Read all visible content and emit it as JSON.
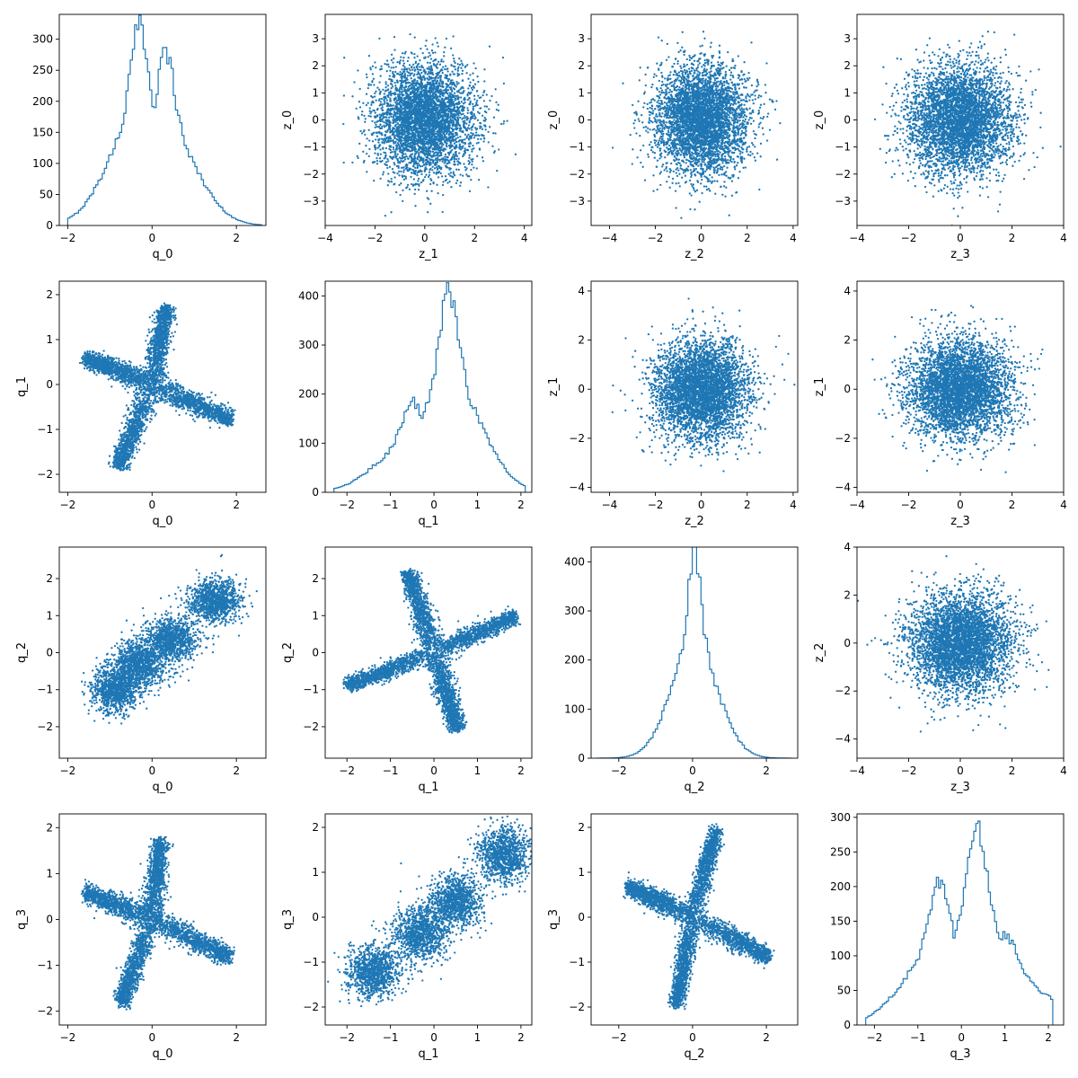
{
  "figure": {
    "background": "#ffffff",
    "series_color": "#1f77b4",
    "rows": 4,
    "cols": 4
  },
  "chart_data": [
    {
      "type": "histogram",
      "row": 0,
      "col": 0,
      "xlabel": "q_0",
      "ylabel": "",
      "xlim": [
        -2.2,
        2.7
      ],
      "ylim": [
        0,
        340
      ],
      "xticks": [
        -2,
        0,
        2
      ],
      "yticks": [
        0,
        50,
        100,
        150,
        200,
        250,
        300
      ],
      "peaks": [
        {
          "x": -0.3,
          "height": 322
        },
        {
          "x": 0.32,
          "height": 280
        }
      ],
      "range": [
        -2.0,
        2.6
      ]
    },
    {
      "type": "scatter",
      "row": 0,
      "col": 1,
      "xlabel": "z_1",
      "ylabel": "z_0",
      "xlim": [
        -4.0,
        4.3
      ],
      "ylim": [
        -3.9,
        3.9
      ],
      "xticks": [
        -4,
        -2,
        0,
        2,
        4
      ],
      "yticks": [
        -3,
        -2,
        -1,
        0,
        1,
        2,
        3
      ],
      "distribution": "standard-normal",
      "center": [
        0,
        0
      ],
      "spread": [
        1,
        1
      ]
    },
    {
      "type": "scatter",
      "row": 0,
      "col": 2,
      "xlabel": "z_2",
      "ylabel": "z_0",
      "xlim": [
        -4.8,
        4.2
      ],
      "ylim": [
        -3.9,
        3.9
      ],
      "xticks": [
        -4,
        -2,
        0,
        2,
        4
      ],
      "yticks": [
        -3,
        -2,
        -1,
        0,
        1,
        2,
        3
      ],
      "distribution": "standard-normal",
      "center": [
        0,
        0
      ],
      "spread": [
        1,
        1
      ]
    },
    {
      "type": "scatter",
      "row": 0,
      "col": 3,
      "xlabel": "z_3",
      "ylabel": "z_0",
      "xlim": [
        -4.0,
        4.0
      ],
      "ylim": [
        -3.9,
        3.9
      ],
      "xticks": [
        -4,
        -2,
        0,
        2,
        4
      ],
      "yticks": [
        -3,
        -2,
        -1,
        0,
        1,
        2,
        3
      ],
      "distribution": "standard-normal",
      "center": [
        0,
        0
      ],
      "spread": [
        1,
        1
      ]
    },
    {
      "type": "scatter",
      "row": 1,
      "col": 0,
      "xlabel": "q_0",
      "ylabel": "q_1",
      "xlim": [
        -2.2,
        2.7
      ],
      "ylim": [
        -2.4,
        2.3
      ],
      "xticks": [
        -2,
        0,
        2
      ],
      "yticks": [
        -2,
        -1,
        0,
        1,
        2
      ],
      "distribution": "four-arm-cross",
      "arms": [
        [
          0.35,
          1.75
        ],
        [
          1.9,
          -0.8
        ],
        [
          -0.8,
          -1.85
        ],
        [
          -1.6,
          0.6
        ]
      ]
    },
    {
      "type": "histogram",
      "row": 1,
      "col": 1,
      "xlabel": "q_1",
      "ylabel": "",
      "xlim": [
        -2.5,
        2.25
      ],
      "ylim": [
        0,
        430
      ],
      "xticks": [
        -2,
        -1,
        0,
        1,
        2
      ],
      "yticks": [
        0,
        100,
        200,
        300,
        400
      ],
      "peaks": [
        {
          "x": -0.5,
          "height": 185
        },
        {
          "x": 0.35,
          "height": 410
        }
      ],
      "range": [
        -2.3,
        2.1
      ]
    },
    {
      "type": "scatter",
      "row": 1,
      "col": 2,
      "xlabel": "z_2",
      "ylabel": "z_1",
      "xlim": [
        -4.8,
        4.2
      ],
      "ylim": [
        -4.2,
        4.4
      ],
      "xticks": [
        -4,
        -2,
        0,
        2,
        4
      ],
      "yticks": [
        -4,
        -2,
        0,
        2,
        4
      ],
      "distribution": "standard-normal",
      "center": [
        0,
        0
      ],
      "spread": [
        1,
        1
      ]
    },
    {
      "type": "scatter",
      "row": 1,
      "col": 3,
      "xlabel": "z_3",
      "ylabel": "z_1",
      "xlim": [
        -4.0,
        4.0
      ],
      "ylim": [
        -4.2,
        4.4
      ],
      "xticks": [
        -4,
        -2,
        0,
        2,
        4
      ],
      "yticks": [
        -4,
        -2,
        0,
        2,
        4
      ],
      "distribution": "standard-normal",
      "center": [
        0,
        0
      ],
      "spread": [
        1,
        1
      ]
    },
    {
      "type": "scatter",
      "row": 2,
      "col": 0,
      "xlabel": "q_0",
      "ylabel": "q_2",
      "xlim": [
        -2.2,
        2.7
      ],
      "ylim": [
        -2.85,
        2.85
      ],
      "xticks": [
        -2,
        0,
        2
      ],
      "yticks": [
        -2,
        -1,
        0,
        1,
        2
      ],
      "distribution": "correlated-blobs",
      "blobs": [
        [
          -0.85,
          -1.0
        ],
        [
          -0.3,
          -0.3
        ],
        [
          0.45,
          0.35
        ],
        [
          1.5,
          1.4
        ]
      ]
    },
    {
      "type": "scatter",
      "row": 2,
      "col": 1,
      "xlabel": "q_1",
      "ylabel": "q_2",
      "xlim": [
        -2.5,
        2.25
      ],
      "ylim": [
        -2.85,
        2.85
      ],
      "xticks": [
        -2,
        -1,
        0,
        1,
        2
      ],
      "yticks": [
        -2,
        -1,
        0,
        1,
        2
      ],
      "distribution": "four-arm-cross",
      "arms": [
        [
          -0.6,
          2.2
        ],
        [
          1.9,
          1.0
        ],
        [
          0.55,
          -2.1
        ],
        [
          -2.0,
          -0.9
        ]
      ]
    },
    {
      "type": "histogram",
      "row": 2,
      "col": 2,
      "xlabel": "q_2",
      "ylabel": "",
      "xlim": [
        -2.75,
        2.85
      ],
      "ylim": [
        0,
        430
      ],
      "xticks": [
        -2,
        0,
        2
      ],
      "yticks": [
        0,
        100,
        200,
        300,
        400
      ],
      "peaks": [
        {
          "x": 0.05,
          "height": 415
        }
      ],
      "range": [
        -2.6,
        2.7
      ]
    },
    {
      "type": "scatter",
      "row": 2,
      "col": 3,
      "xlabel": "z_3",
      "ylabel": "z_2",
      "xlim": [
        -4.0,
        4.0
      ],
      "ylim": [
        -4.8,
        4.0
      ],
      "xticks": [
        -4,
        -2,
        0,
        2,
        4
      ],
      "yticks": [
        -4,
        -2,
        0,
        2,
        4
      ],
      "distribution": "standard-normal",
      "center": [
        0,
        0
      ],
      "spread": [
        1,
        1
      ]
    },
    {
      "type": "scatter",
      "row": 3,
      "col": 0,
      "xlabel": "q_0",
      "ylabel": "q_3",
      "xlim": [
        -2.2,
        2.7
      ],
      "ylim": [
        -2.3,
        2.3
      ],
      "xticks": [
        -2,
        0,
        2
      ],
      "yticks": [
        -2,
        -1,
        0,
        1,
        2
      ],
      "distribution": "four-arm-cross",
      "arms": [
        [
          0.2,
          1.75
        ],
        [
          1.9,
          -0.85
        ],
        [
          -0.75,
          -1.85
        ],
        [
          -1.6,
          0.6
        ]
      ]
    },
    {
      "type": "scatter",
      "row": 3,
      "col": 1,
      "xlabel": "q_1",
      "ylabel": "q_3",
      "xlim": [
        -2.5,
        2.25
      ],
      "ylim": [
        -2.4,
        2.3
      ],
      "xticks": [
        -2,
        -1,
        0,
        1,
        2
      ],
      "yticks": [
        -2,
        -1,
        0,
        1,
        2
      ],
      "distribution": "correlated-blobs",
      "blobs": [
        [
          -1.4,
          -1.2
        ],
        [
          -0.3,
          -0.35
        ],
        [
          0.5,
          0.35
        ],
        [
          1.6,
          1.4
        ]
      ]
    },
    {
      "type": "scatter",
      "row": 3,
      "col": 2,
      "xlabel": "q_2",
      "ylabel": "q_3",
      "xlim": [
        -2.75,
        2.85
      ],
      "ylim": [
        -2.4,
        2.3
      ],
      "xticks": [
        -2,
        0,
        2
      ],
      "yticks": [
        -2,
        -1,
        0,
        1,
        2
      ],
      "distribution": "four-arm-cross",
      "arms": [
        [
          0.65,
          1.95
        ],
        [
          2.1,
          -0.9
        ],
        [
          -0.45,
          -2.0
        ],
        [
          -1.8,
          0.7
        ]
      ]
    },
    {
      "type": "histogram",
      "row": 3,
      "col": 3,
      "xlabel": "q_3",
      "ylabel": "",
      "xlim": [
        -2.4,
        2.35
      ],
      "ylim": [
        0,
        305
      ],
      "xticks": [
        -2,
        -1,
        0,
        1,
        2
      ],
      "yticks": [
        0,
        50,
        100,
        150,
        200,
        250,
        300
      ],
      "peaks": [
        {
          "x": -0.5,
          "height": 205
        },
        {
          "x": 0.35,
          "height": 290
        },
        {
          "x": 1.0,
          "height": 130
        }
      ],
      "range": [
        -2.2,
        2.1
      ]
    }
  ]
}
